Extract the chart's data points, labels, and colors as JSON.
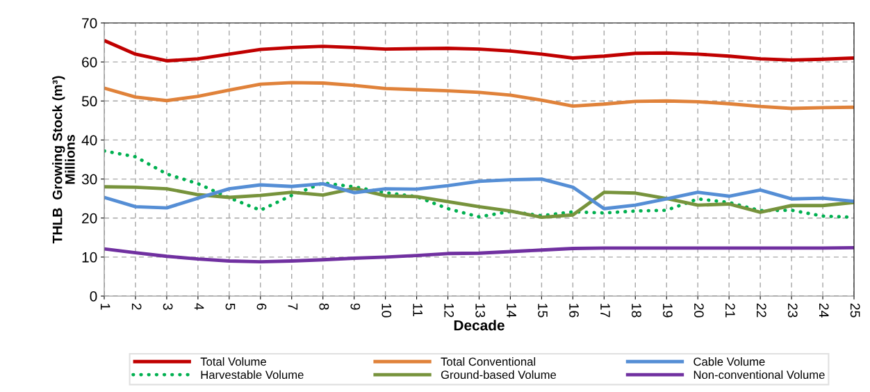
{
  "chart_data": {
    "type": "line",
    "xlabel": "Decade",
    "ylabel": "THLB  Growing Stock (m³)\nMillions",
    "x": [
      1,
      2,
      3,
      4,
      5,
      6,
      7,
      8,
      9,
      10,
      11,
      12,
      13,
      14,
      15,
      16,
      17,
      18,
      19,
      20,
      21,
      22,
      23,
      24,
      25
    ],
    "xlim": [
      1,
      25
    ],
    "xticks": [
      1,
      2,
      3,
      4,
      5,
      6,
      7,
      8,
      9,
      10,
      11,
      12,
      13,
      14,
      15,
      16,
      17,
      18,
      19,
      20,
      21,
      22,
      23,
      24,
      25
    ],
    "ylim": [
      0,
      70
    ],
    "yticks": [
      0,
      10,
      20,
      30,
      40,
      50,
      60,
      70
    ],
    "grid": true,
    "legend": "bottom",
    "marker": "none",
    "series": [
      {
        "name": "Total Volume",
        "color": "#c00000",
        "line_style": "solid",
        "values": [
          65.5,
          62,
          60.3,
          60.8,
          62,
          63.2,
          63.7,
          64,
          63.7,
          63.3,
          63.4,
          63.5,
          63.3,
          62.8,
          62,
          61,
          61.5,
          62.2,
          62.3,
          62,
          61.5,
          60.8,
          60.5,
          60.7,
          61
        ]
      },
      {
        "name": "Harvestable Volume",
        "color": "#00b050",
        "line_style": "dotted",
        "values": [
          37.2,
          35.7,
          31.3,
          28.8,
          25.2,
          22,
          25.8,
          29,
          28,
          26.5,
          25.5,
          22.4,
          20.3,
          21.7,
          20.6,
          21.6,
          21.3,
          21.8,
          22,
          24.9,
          24,
          21.9,
          22,
          20.5,
          20.2
        ]
      },
      {
        "name": "Total Conventional",
        "color": "#e0823a",
        "line_style": "solid",
        "values": [
          53.3,
          51,
          50.1,
          51.2,
          52.8,
          54.3,
          54.7,
          54.6,
          54,
          53.2,
          52.9,
          52.6,
          52.2,
          51.5,
          50.2,
          48.7,
          49.2,
          49.9,
          50,
          49.8,
          49.3,
          48.6,
          48.1,
          48.3,
          48.4
        ]
      },
      {
        "name": "Ground-based Volume",
        "color": "#77933c",
        "line_style": "solid",
        "values": [
          28,
          27.9,
          27.5,
          26,
          25.3,
          25.8,
          26.6,
          25.9,
          27.6,
          25.7,
          25.5,
          24.2,
          22.9,
          21.8,
          20.2,
          20.8,
          26.6,
          26.4,
          25,
          23.3,
          23.6,
          21.5,
          23.2,
          23.2,
          24
        ]
      },
      {
        "name": "Cable Volume",
        "color": "#558ed5",
        "line_style": "solid",
        "values": [
          25.3,
          22.9,
          22.6,
          25.1,
          27.5,
          28.5,
          28.1,
          28.8,
          26.5,
          27.5,
          27.4,
          28.3,
          29.4,
          29.8,
          30,
          27.9,
          22.4,
          23.3,
          24.9,
          26.6,
          25.6,
          27.2,
          24.9,
          25.1,
          24.3
        ]
      },
      {
        "name": "Non-conventional Volume",
        "color": "#7030a0",
        "line_style": "solid",
        "values": [
          12.1,
          11.1,
          10.2,
          9.5,
          9.0,
          8.8,
          9.0,
          9.3,
          9.7,
          10.0,
          10.4,
          10.9,
          11.0,
          11.4,
          11.8,
          12.2,
          12.3,
          12.3,
          12.3,
          12.3,
          12.3,
          12.3,
          12.3,
          12.3,
          12.4
        ]
      }
    ]
  }
}
